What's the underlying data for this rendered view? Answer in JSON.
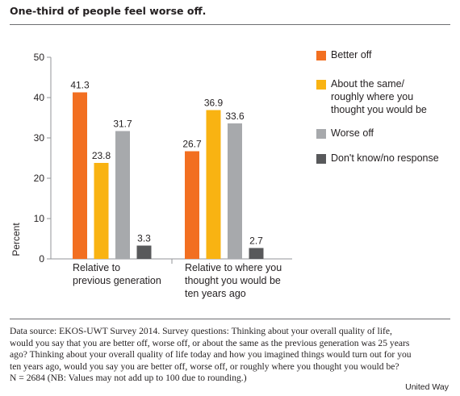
{
  "title": "One-third of people feel worse off.",
  "chart_data": {
    "type": "bar",
    "categories": [
      [
        "Relative to",
        "previous generation"
      ],
      [
        "Relative to where you",
        "thought you would be",
        "ten years ago"
      ]
    ],
    "ylabel": "Percent",
    "ylim": [
      0,
      50
    ],
    "yticks": [
      0,
      10,
      20,
      30,
      40,
      50
    ],
    "grid": false,
    "legend_position": "right",
    "series": [
      {
        "name": "Better off",
        "color": "#f26f21",
        "values": [
          41.3,
          26.7
        ],
        "labels": [
          "41.3",
          "26.7"
        ]
      },
      {
        "name": "About the same/ roughly where you thought you would be",
        "color": "#f9b312",
        "values": [
          23.8,
          36.9
        ],
        "labels": [
          "23.8",
          "36.9"
        ]
      },
      {
        "name": "Worse off",
        "color": "#a7a9ac",
        "values": [
          31.7,
          33.6
        ],
        "labels": [
          "31.7",
          "33.6"
        ]
      },
      {
        "name": "Don't know/no response",
        "color": "#58595b",
        "values": [
          3.3,
          2.7
        ],
        "labels": [
          "3.3",
          "2.7"
        ]
      }
    ]
  },
  "legend": {
    "items": [
      {
        "label_lines": [
          "Better off"
        ],
        "color": "#f26f21"
      },
      {
        "label_lines": [
          "About the same/",
          "roughly where you",
          "thought you would be"
        ],
        "color": "#f9b312"
      },
      {
        "label_lines": [
          "Worse off"
        ],
        "color": "#a7a9ac"
      },
      {
        "label_lines": [
          "Don't know/no response"
        ],
        "color": "#58595b"
      }
    ]
  },
  "source": {
    "lines": [
      "Data source: EKOS-UWT Survey 2014. Survey questions: Thinking about your overall quality of life,",
      "would you say that you are better off, worse off, or about the same as the previous generation was 25 years",
      "ago? Thinking about your overall quality of life today and how you imagined things would turn out for you",
      "ten years ago, would you say you are better off, worse off, or roughly where you thought you would be?",
      "N = 2684 (NB: Values may not add up to 100 due to rounding.)"
    ]
  },
  "credit": "United Way"
}
